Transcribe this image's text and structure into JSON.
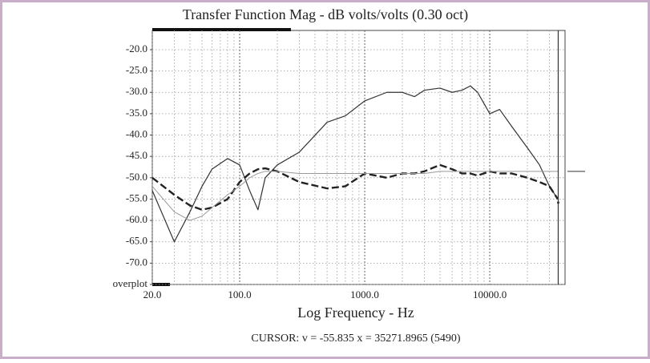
{
  "chart_data": {
    "type": "line",
    "title": "Transfer Function Mag - dB volts/volts (0.30 oct)",
    "x_label": "Log Frequency - Hz",
    "cursor_text": "CURSOR: v = -55.835 x = 35271.8965 (5490)",
    "cursor": {
      "x": 35271.8965,
      "y": -55.835
    },
    "log_x": true,
    "grid": true,
    "xlim": [
      20,
      40000
    ],
    "ylim": [
      -75,
      -15.5
    ],
    "xticks": [
      {
        "value": 20,
        "label": "20.0"
      },
      {
        "value": 100,
        "label": "100.0"
      },
      {
        "value": 1000,
        "label": "1000.0"
      },
      {
        "value": 10000,
        "label": "10000.0"
      }
    ],
    "yticks": [
      {
        "value": -20,
        "label": "-20.0"
      },
      {
        "value": -25,
        "label": "-25.0"
      },
      {
        "value": -30,
        "label": "-30.0"
      },
      {
        "value": -35,
        "label": "-35.0"
      },
      {
        "value": -40,
        "label": "-40.0"
      },
      {
        "value": -45,
        "label": "-45.0"
      },
      {
        "value": -50,
        "label": "-50.0"
      },
      {
        "value": -55,
        "label": "-55.0"
      },
      {
        "value": -60,
        "label": "-60.0"
      },
      {
        "value": -65,
        "label": "-65.0"
      },
      {
        "value": -70,
        "label": "-70.0"
      },
      {
        "value": -75,
        "label": "overplot"
      }
    ],
    "x": [
      20,
      30,
      40,
      50,
      60,
      80,
      100,
      120,
      140,
      160,
      200,
      300,
      500,
      700,
      1000,
      1500,
      2000,
      2500,
      3000,
      4000,
      5000,
      6000,
      7000,
      8000,
      10000,
      12000,
      15000,
      20000,
      25000,
      30000,
      35000
    ],
    "series": [
      {
        "color": "#333333",
        "style": "solid",
        "width": 1.2,
        "values": [
          -53,
          -65,
          -58,
          -52,
          -48,
          -45.5,
          -47,
          -53,
          -57.5,
          -50,
          -47,
          -44,
          -37,
          -35.5,
          -32,
          -30,
          -30,
          -31,
          -29.5,
          -29,
          -30,
          -29.5,
          -28.5,
          -30,
          -35,
          -34,
          -38,
          -43,
          -47,
          -52,
          -55
        ]
      },
      {
        "color": "#222222",
        "style": "dashed",
        "width": 2.4,
        "values": [
          -50,
          -54,
          -56.5,
          -57.5,
          -57,
          -55,
          -51,
          -49,
          -48,
          -47.8,
          -48.5,
          -51,
          -52.5,
          -52,
          -49,
          -50,
          -49,
          -49,
          -48.5,
          -47,
          -48,
          -49,
          -49,
          -49.5,
          -48.5,
          -49,
          -49,
          -50,
          -51,
          -52,
          -55
        ]
      },
      {
        "color": "#999999",
        "style": "thin",
        "width": 1,
        "values": [
          -52,
          -58,
          -60,
          -59,
          -57,
          -54,
          -52,
          -50,
          -49,
          -48.5,
          -48.5,
          -49,
          -49,
          -49,
          -49,
          -49,
          -49,
          -49,
          -49,
          -48.5,
          -48.5,
          -48.5,
          -48.5,
          -48.5,
          -48.5,
          -48.5,
          -48.5,
          -48.5,
          -48.5,
          -48.5,
          -48.5
        ]
      }
    ]
  }
}
